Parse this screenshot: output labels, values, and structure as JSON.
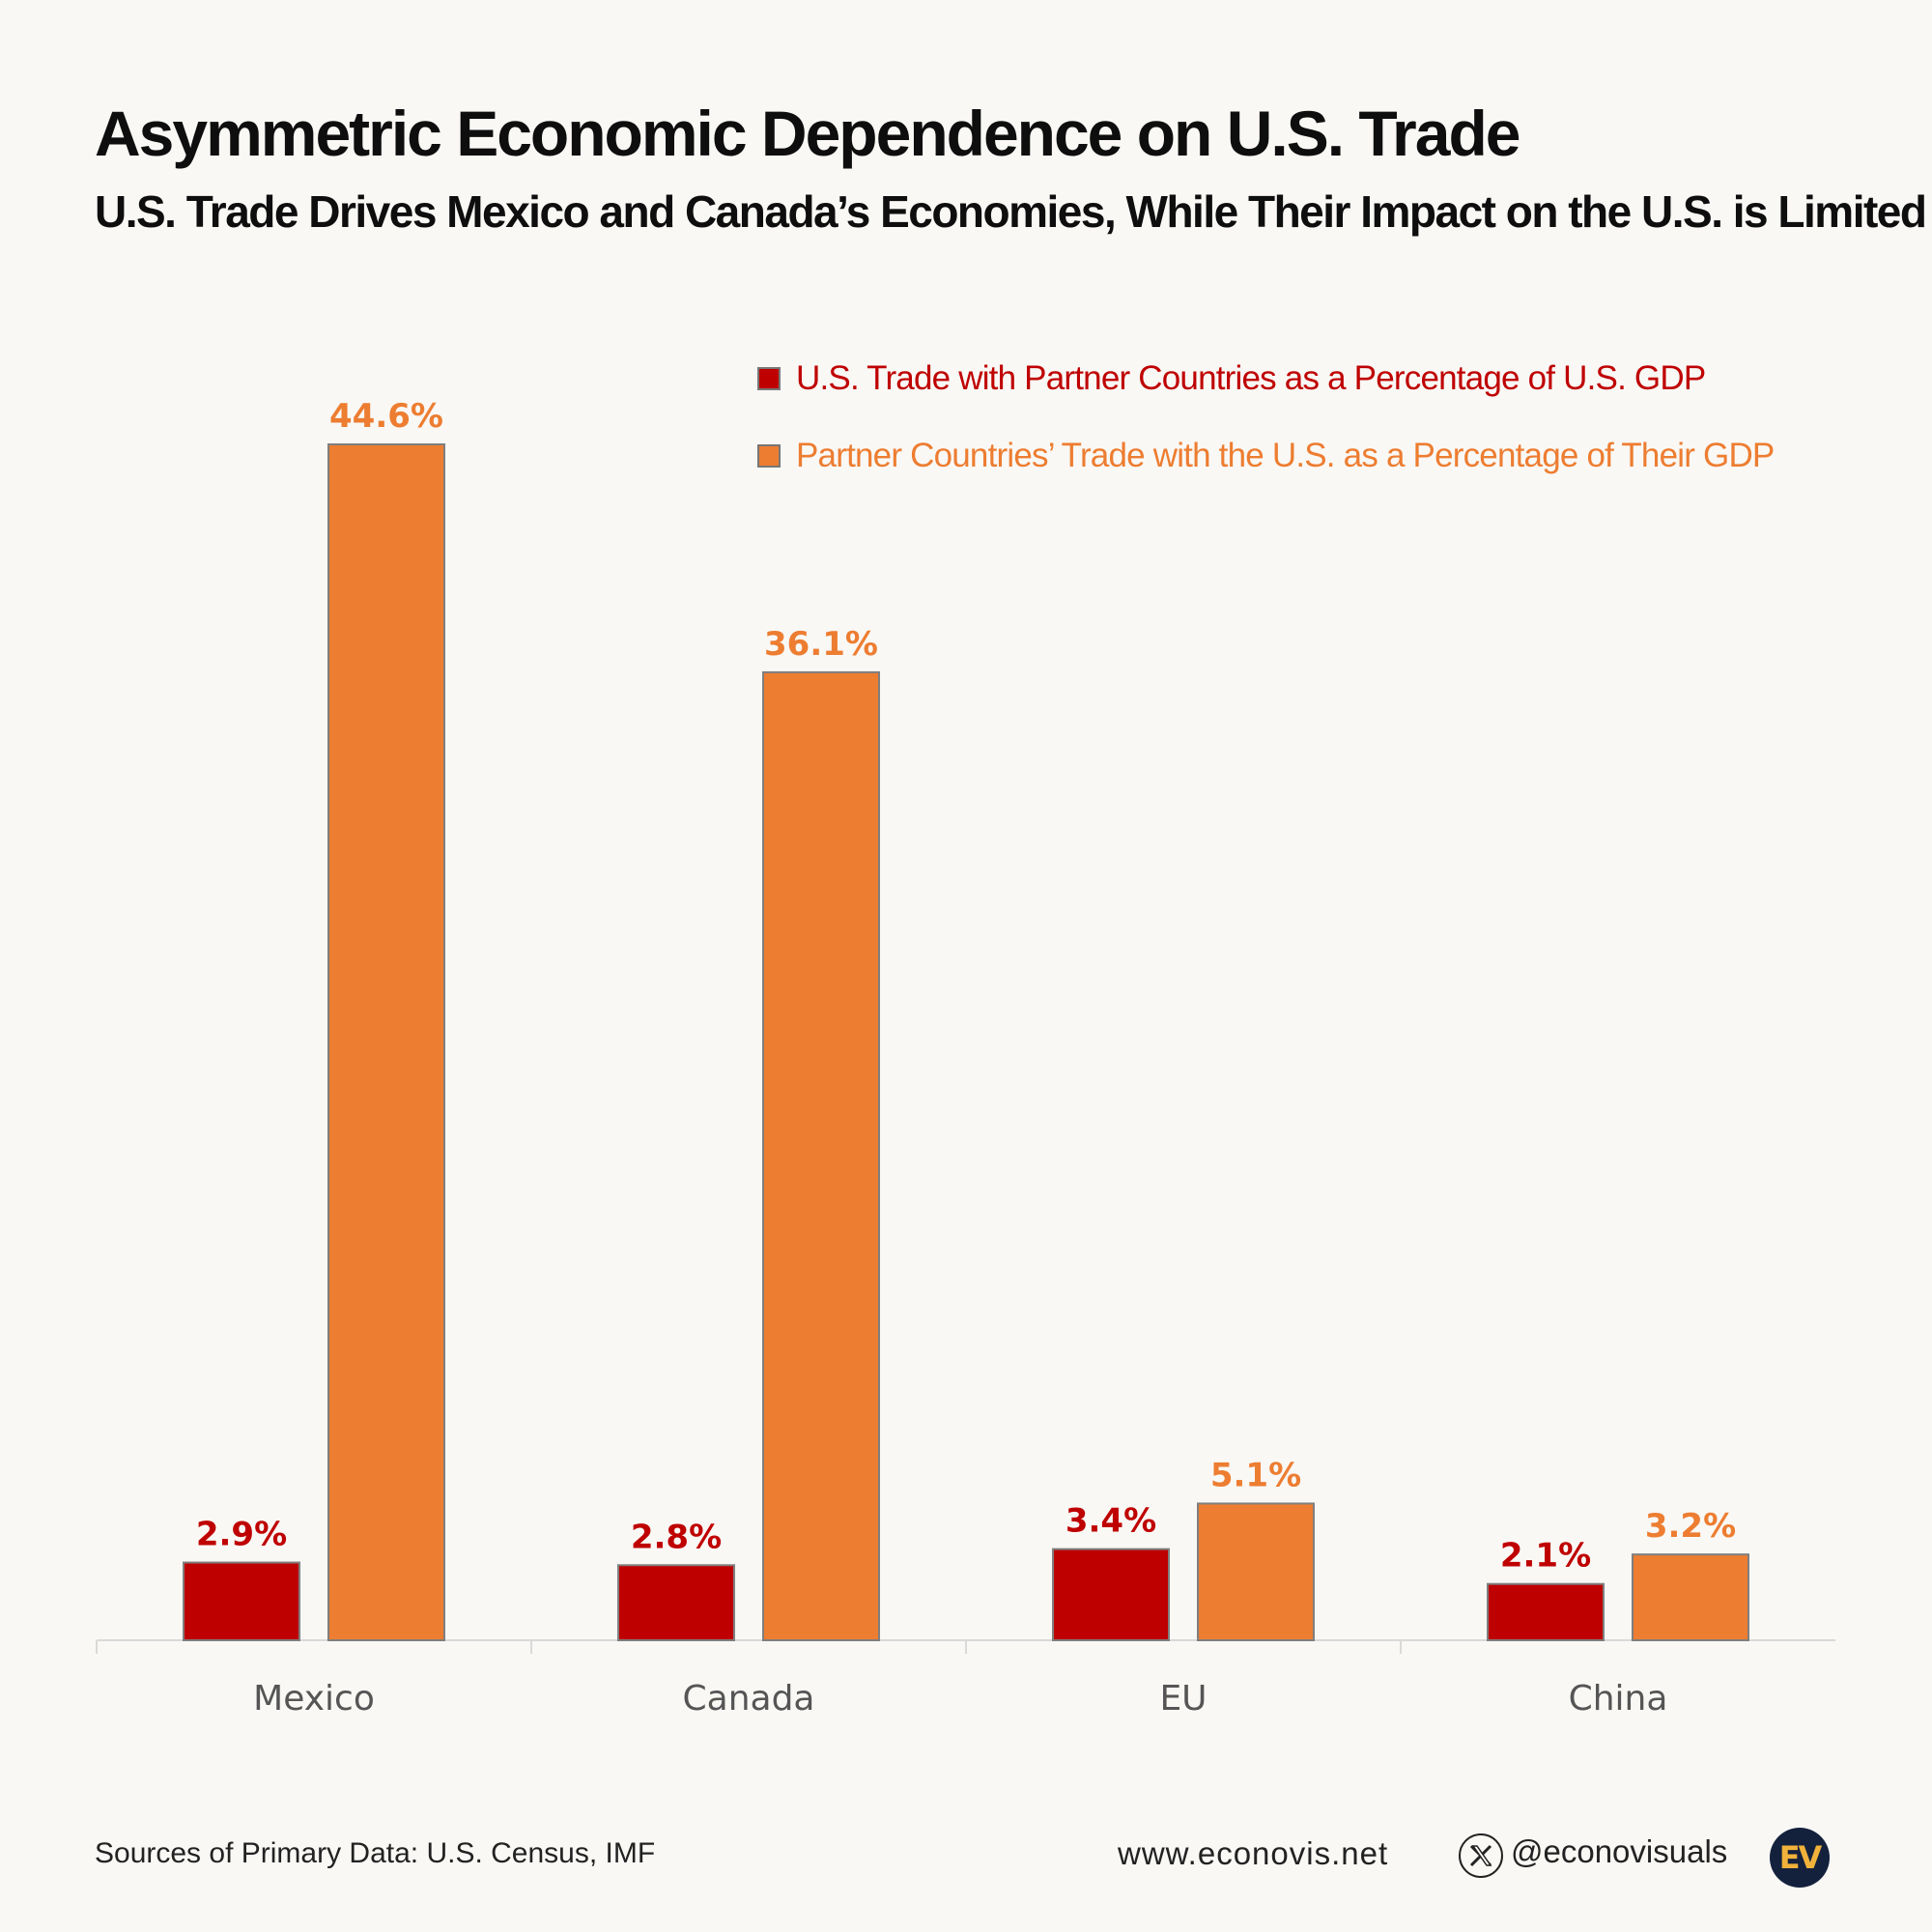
{
  "header": {
    "title": "Asymmetric Economic Dependence on U.S. Trade",
    "subtitle": "U.S. Trade Drives Mexico and Canada’s Economies, While Their Impact on the U.S. is Limited"
  },
  "legend": {
    "items": [
      {
        "label": "U.S. Trade with Partner Countries as a Percentage of U.S. GDP",
        "color": "#bf0000"
      },
      {
        "label": "Partner Countries’ Trade with the U.S. as a Percentage of Their GDP",
        "color": "#ed7d31"
      }
    ]
  },
  "chart_data": {
    "type": "bar",
    "categories": [
      "Mexico",
      "Canada",
      "EU",
      "China"
    ],
    "series": [
      {
        "name": "U.S. Trade with Partner Countries as a Percentage of U.S. GDP",
        "values": [
          2.9,
          2.8,
          3.4,
          2.1
        ],
        "labels": [
          "2.9%",
          "2.8%",
          "3.4%",
          "2.1%"
        ],
        "color": "#bf0000"
      },
      {
        "name": "Partner Countries’ Trade with the U.S. as a Percentage of Their GDP",
        "values": [
          44.6,
          36.1,
          5.1,
          3.2
        ],
        "labels": [
          "44.6%",
          "36.1%",
          "5.1%",
          "3.2%"
        ],
        "color": "#ed7d31"
      }
    ],
    "ylim": [
      0,
      44.6
    ],
    "grid": false,
    "legend_position": "top-right",
    "axis_color": "#d9d9d9",
    "category_label_color": "#555555",
    "bar_border_color": "#7f7f7f"
  },
  "footer": {
    "source": "Sources of Primary Data: U.S. Census, IMF",
    "website": "www.econovis.net",
    "handle": "@econovisuals",
    "social_icon": "x-icon",
    "logo_text": "EV",
    "logo_color": "#14213d",
    "logo_text_color": "#f0b23a"
  }
}
